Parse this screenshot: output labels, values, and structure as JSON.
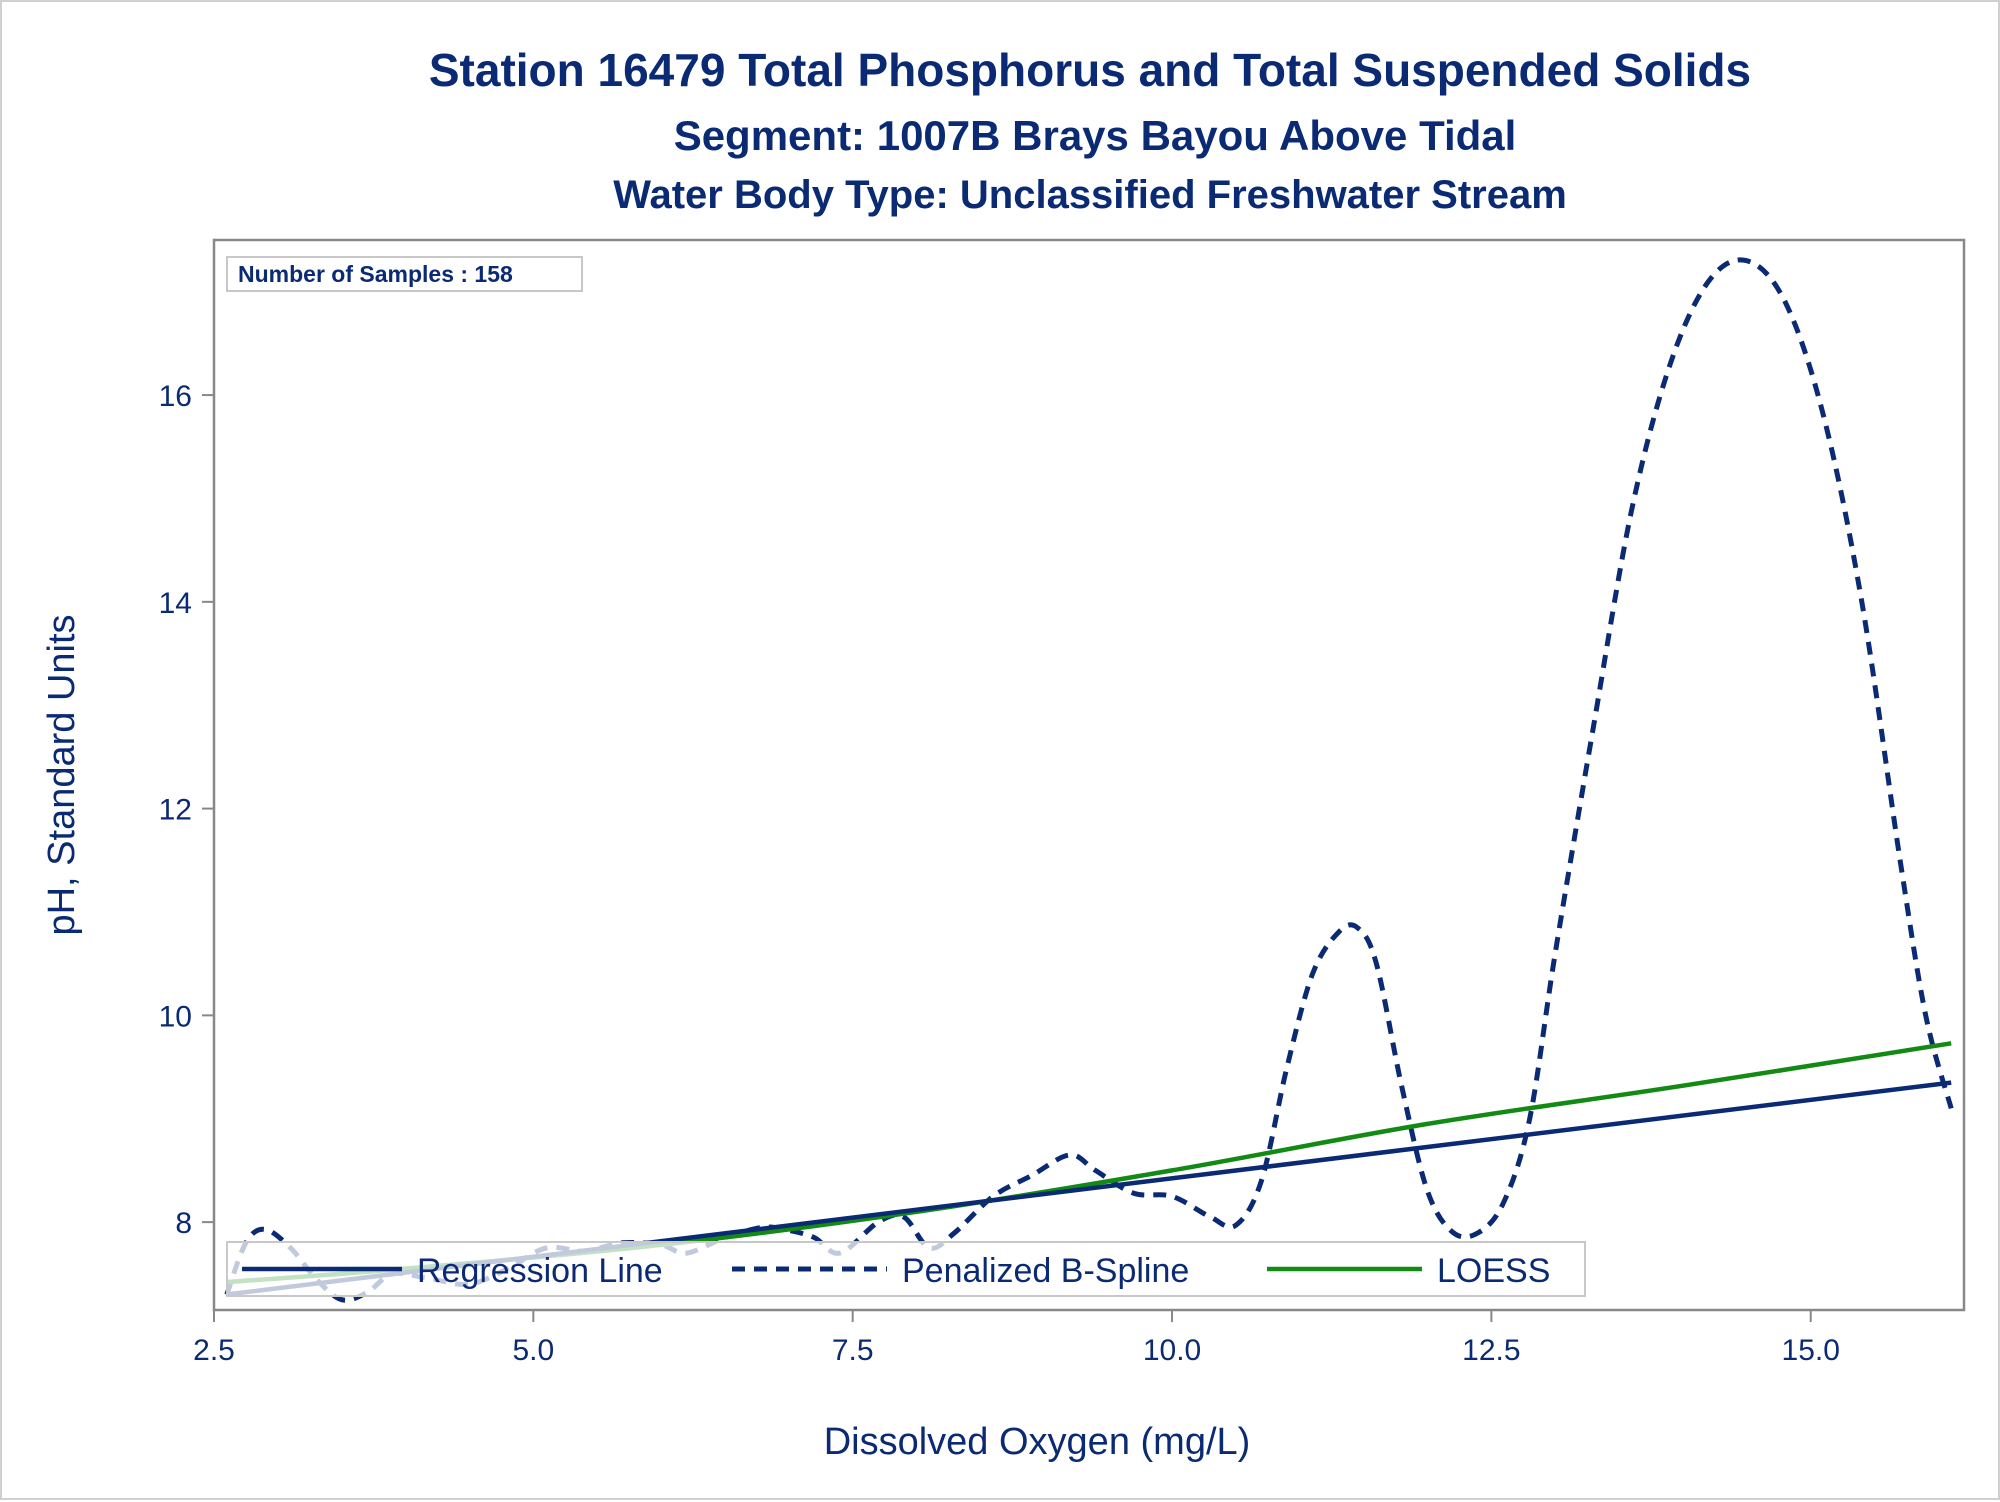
{
  "titles": {
    "line1": "Station 16479  Total Phosphorus and Total Suspended Solids",
    "line2": "Segment: 1007B  Brays Bayou Above Tidal",
    "line3": "Water Body Type: Unclassified Freshwater Stream"
  },
  "inset": {
    "text": "Number of Samples : 158"
  },
  "colors": {
    "text": "#0b2a74",
    "regression": "#0b2a74",
    "spline": "#0b2a74",
    "loess": "#138a13",
    "frame": "#888888"
  },
  "chart_data": {
    "type": "line",
    "xlabel": "Dissolved Oxygen (mg/L)",
    "ylabel": "pH, Standard Units",
    "xlim": [
      2.5,
      16.2
    ],
    "ylim": [
      7.15,
      17.5
    ],
    "x_ticks": [
      2.5,
      5.0,
      7.5,
      10.0,
      12.5,
      15.0
    ],
    "x_tick_labels": [
      "2.5",
      "5.0",
      "7.5",
      "10.0",
      "12.5",
      "15.0"
    ],
    "y_ticks": [
      8,
      10,
      12,
      14,
      16
    ],
    "y_tick_labels": [
      "8",
      "10",
      "12",
      "14",
      "16"
    ],
    "legend_position": "bottom-left",
    "series": [
      {
        "name": "Regression Line",
        "style": "solid",
        "color": "#0b2a74",
        "x": [
          2.6,
          16.1
        ],
        "y": [
          7.3,
          9.35
        ]
      },
      {
        "name": "Penalized B-Spline",
        "style": "dashed",
        "color": "#0b2a74",
        "x": [
          2.6,
          2.75,
          2.9,
          3.1,
          3.3,
          3.5,
          3.7,
          3.9,
          4.2,
          4.5,
          4.8,
          5.1,
          5.4,
          5.7,
          6.0,
          6.2,
          6.5,
          6.8,
          7.0,
          7.2,
          7.4,
          7.7,
          7.9,
          8.1,
          8.3,
          8.6,
          8.9,
          9.2,
          9.4,
          9.7,
          10.0,
          10.3,
          10.5,
          10.7,
          10.9,
          11.1,
          11.3,
          11.45,
          11.6,
          11.8,
          12.0,
          12.2,
          12.4,
          12.6,
          12.8,
          13.0,
          13.3,
          13.6,
          13.9,
          14.2,
          14.5,
          14.8,
          15.1,
          15.4,
          15.7,
          15.9,
          16.1
        ],
        "y": [
          7.3,
          7.8,
          7.93,
          7.75,
          7.45,
          7.25,
          7.32,
          7.5,
          7.45,
          7.4,
          7.55,
          7.75,
          7.72,
          7.8,
          7.78,
          7.7,
          7.85,
          7.95,
          7.92,
          7.85,
          7.7,
          8.0,
          8.05,
          7.75,
          7.9,
          8.25,
          8.45,
          8.65,
          8.5,
          8.28,
          8.25,
          8.05,
          7.97,
          8.4,
          9.5,
          10.4,
          10.8,
          10.85,
          10.5,
          9.3,
          8.3,
          7.9,
          7.9,
          8.2,
          9.0,
          10.6,
          12.8,
          14.9,
          16.3,
          17.1,
          17.3,
          16.9,
          15.8,
          14.0,
          11.5,
          10.0,
          9.1
        ]
      },
      {
        "name": "LOESS",
        "style": "solid",
        "color": "#138a13",
        "x": [
          2.6,
          4.0,
          6.0,
          8.0,
          10.0,
          12.0,
          14.0,
          16.1
        ],
        "y": [
          7.42,
          7.55,
          7.78,
          8.1,
          8.5,
          8.95,
          9.32,
          9.73
        ]
      }
    ]
  }
}
